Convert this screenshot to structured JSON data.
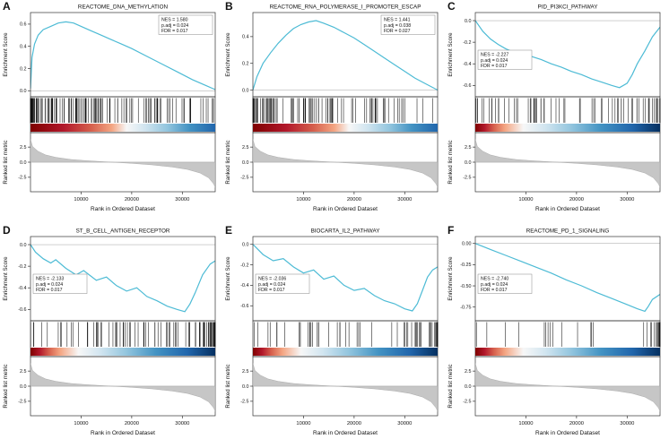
{
  "shared": {
    "xlabel": "Rank in Ordered Dataset",
    "es_ylabel": "Enrichment Score",
    "rank_ylabel": "Ranked list metric",
    "xlim": [
      0,
      36500
    ],
    "xticks": {
      "values": [
        10000,
        20000,
        30000
      ],
      "labels": [
        "10000",
        "20000",
        "30000"
      ]
    },
    "rank_yticks": {
      "values": [
        2.5,
        0,
        -2.5
      ],
      "labels": [
        "2.5",
        "0.0",
        "-2.5"
      ]
    },
    "rank_ylim": [
      -4.6,
      4.6
    ],
    "rank_metric_curve": {
      "x": [
        0,
        400,
        1500,
        3000,
        5000,
        8000,
        11000,
        14000,
        17000,
        20000,
        24000,
        28000,
        31000,
        33500,
        35200,
        36200,
        36500
      ],
      "y": [
        3.8,
        2.6,
        1.8,
        1.2,
        0.8,
        0.45,
        0.25,
        0.1,
        -0.05,
        -0.2,
        -0.45,
        -0.8,
        -1.2,
        -1.8,
        -2.6,
        -3.6,
        -4.2
      ]
    },
    "colors": {
      "es_curve": "#4dbbd5",
      "rank_fill": "#c6c6c6",
      "rank_stroke": "#a0a0a0",
      "axis": "#333333",
      "zero_line": "#b5b5b5",
      "hit": "#111111"
    }
  },
  "chart_data": [
    {
      "type": "line",
      "panel": "A",
      "title": "REACTOME_DNA_METHYLATION",
      "stats_lines": [
        "NES = 1.580",
        "p.adj = 0.024",
        "FDR = 0.017"
      ],
      "stats_pos": "top-right",
      "es_ylim": [
        -0.03,
        0.68
      ],
      "es_yticks": {
        "values": [
          0.0,
          0.2,
          0.4,
          0.6
        ],
        "labels": [
          "0.0",
          "0.2",
          "0.4",
          "0.6"
        ]
      },
      "es_curve": {
        "x": [
          0,
          300,
          800,
          1500,
          2500,
          4000,
          5500,
          7000,
          8500,
          10000,
          12000,
          14000,
          16000,
          18000,
          20000,
          23000,
          26000,
          29000,
          32000,
          34500,
          36500
        ],
        "y": [
          0.02,
          0.3,
          0.42,
          0.5,
          0.55,
          0.58,
          0.61,
          0.62,
          0.61,
          0.58,
          0.54,
          0.5,
          0.46,
          0.42,
          0.38,
          0.31,
          0.24,
          0.17,
          0.1,
          0.05,
          0.01
        ]
      },
      "hits": {
        "count": 140,
        "side": "left",
        "skew": 2.2,
        "mix": 0.75,
        "seed": 11
      },
      "heat_stops": [
        [
          0,
          "#7f0000"
        ],
        [
          0.18,
          "#b2182b"
        ],
        [
          0.33,
          "#d6604d"
        ],
        [
          0.44,
          "#f4a582"
        ],
        [
          0.52,
          "#f7f7f7"
        ],
        [
          0.62,
          "#d1e5f0"
        ],
        [
          0.74,
          "#92c5de"
        ],
        [
          0.86,
          "#4393c3"
        ],
        [
          1,
          "#2166ac"
        ]
      ]
    },
    {
      "type": "line",
      "panel": "B",
      "title": "REACTOME_RNA_POLYMERASE_I_PROMOTER_ESCAP",
      "stats_lines": [
        "NES = 1.441",
        "p.adj = 0.038",
        "FDR = 0.027"
      ],
      "stats_pos": "top-right",
      "es_ylim": [
        -0.03,
        0.56
      ],
      "es_yticks": {
        "values": [
          0.0,
          0.2,
          0.4
        ],
        "labels": [
          "0.0",
          "0.2",
          "0.4"
        ]
      },
      "es_curve": {
        "x": [
          0,
          800,
          2000,
          3500,
          5000,
          6500,
          8000,
          9500,
          11000,
          12500,
          14000,
          16000,
          18000,
          20000,
          22000,
          24000,
          26000,
          28000,
          30000,
          32000,
          34000,
          36500
        ],
        "y": [
          0.0,
          0.1,
          0.2,
          0.28,
          0.35,
          0.41,
          0.46,
          0.49,
          0.51,
          0.52,
          0.5,
          0.47,
          0.43,
          0.39,
          0.34,
          0.29,
          0.24,
          0.19,
          0.14,
          0.09,
          0.05,
          0.0
        ]
      },
      "hits": {
        "count": 100,
        "side": "left",
        "skew": 1.8,
        "mix": 0.7,
        "seed": 22
      },
      "heat_stops": [
        [
          0,
          "#7f0000"
        ],
        [
          0.18,
          "#b2182b"
        ],
        [
          0.33,
          "#d6604d"
        ],
        [
          0.44,
          "#f4a582"
        ],
        [
          0.52,
          "#f7f7f7"
        ],
        [
          0.62,
          "#d1e5f0"
        ],
        [
          0.74,
          "#92c5de"
        ],
        [
          0.86,
          "#4393c3"
        ],
        [
          1,
          "#2166ac"
        ]
      ]
    },
    {
      "type": "line",
      "panel": "C",
      "title": "PID_PI3KCI_PATHWAY",
      "stats_lines": [
        "NES = -2.227",
        "p.adj = 0.024",
        "FDR = 0.017"
      ],
      "stats_pos": "mid-left",
      "es_ylim": [
        -0.68,
        0.05
      ],
      "es_yticks": {
        "values": [
          0.0,
          -0.2,
          -0.4,
          -0.6
        ],
        "labels": [
          "0.0",
          "-0.2",
          "-0.4",
          "-0.6"
        ]
      },
      "es_curve": {
        "x": [
          0,
          1500,
          3000,
          4500,
          6000,
          8000,
          9500,
          11000,
          13000,
          15000,
          17000,
          19000,
          21000,
          23000,
          25000,
          27000,
          28500,
          30000,
          31000,
          32000,
          33500,
          35000,
          36500
        ],
        "y": [
          0,
          -0.1,
          -0.17,
          -0.22,
          -0.26,
          -0.3,
          -0.28,
          -0.33,
          -0.36,
          -0.4,
          -0.43,
          -0.47,
          -0.5,
          -0.54,
          -0.57,
          -0.6,
          -0.62,
          -0.58,
          -0.5,
          -0.4,
          -0.28,
          -0.15,
          -0.06
        ]
      },
      "hits": {
        "count": 70,
        "side": "right",
        "skew": 2.2,
        "mix": 0.7,
        "seed": 33
      },
      "heat_stops": [
        [
          0,
          "#7f0000"
        ],
        [
          0.05,
          "#b2182b"
        ],
        [
          0.1,
          "#d6604d"
        ],
        [
          0.16,
          "#f4a582"
        ],
        [
          0.26,
          "#f7f7f7"
        ],
        [
          0.38,
          "#d1e5f0"
        ],
        [
          0.52,
          "#92c5de"
        ],
        [
          0.68,
          "#4393c3"
        ],
        [
          0.85,
          "#2166ac"
        ],
        [
          1,
          "#053061"
        ]
      ]
    },
    {
      "type": "line",
      "panel": "D",
      "title": "ST_B_CELL_ANTIGEN_RECEPTOR",
      "stats_lines": [
        "NES = -2.133",
        "p.adj = 0.024",
        "FDR = 0.017"
      ],
      "stats_pos": "mid-left",
      "es_ylim": [
        -0.68,
        0.05
      ],
      "es_yticks": {
        "values": [
          0.0,
          -0.2,
          -0.4,
          -0.6
        ],
        "labels": [
          "0.0",
          "-0.2",
          "-0.4",
          "-0.6"
        ]
      },
      "es_curve": {
        "x": [
          0,
          1000,
          2500,
          4000,
          5000,
          7000,
          9000,
          10500,
          13000,
          15000,
          17000,
          19000,
          21000,
          23000,
          25000,
          27000,
          29000,
          30500,
          31500,
          32500,
          34000,
          35500,
          36500
        ],
        "y": [
          0,
          -0.07,
          -0.13,
          -0.17,
          -0.14,
          -0.22,
          -0.28,
          -0.24,
          -0.33,
          -0.3,
          -0.38,
          -0.43,
          -0.4,
          -0.48,
          -0.52,
          -0.57,
          -0.6,
          -0.62,
          -0.55,
          -0.45,
          -0.28,
          -0.18,
          -0.15
        ]
      },
      "hits": {
        "count": 85,
        "side": "right",
        "skew": 2.0,
        "mix": 0.75,
        "seed": 44
      },
      "heat_stops": [
        [
          0,
          "#7f0000"
        ],
        [
          0.05,
          "#b2182b"
        ],
        [
          0.1,
          "#d6604d"
        ],
        [
          0.16,
          "#f4a582"
        ],
        [
          0.26,
          "#f7f7f7"
        ],
        [
          0.38,
          "#d1e5f0"
        ],
        [
          0.52,
          "#92c5de"
        ],
        [
          0.68,
          "#4393c3"
        ],
        [
          0.85,
          "#2166ac"
        ],
        [
          1,
          "#053061"
        ]
      ]
    },
    {
      "type": "line",
      "panel": "E",
      "title": "BIOCARTA_IL2_PATHWAY",
      "stats_lines": [
        "NES = -2.036",
        "p.adj = 0.024",
        "FDR = 0.017"
      ],
      "stats_pos": "mid-left",
      "es_ylim": [
        -0.72,
        0.05
      ],
      "es_yticks": {
        "values": [
          0.0,
          -0.2,
          -0.4,
          -0.6
        ],
        "labels": [
          "0.0",
          "-0.2",
          "-0.4",
          "-0.6"
        ]
      },
      "es_curve": {
        "x": [
          0,
          2000,
          4000,
          6000,
          8000,
          10000,
          12000,
          14000,
          16000,
          18000,
          20000,
          22000,
          24000,
          26000,
          28000,
          30000,
          31500,
          32500,
          33500,
          34500,
          35500,
          36500
        ],
        "y": [
          0,
          -0.1,
          -0.16,
          -0.14,
          -0.22,
          -0.28,
          -0.25,
          -0.34,
          -0.31,
          -0.4,
          -0.45,
          -0.43,
          -0.5,
          -0.55,
          -0.58,
          -0.63,
          -0.65,
          -0.58,
          -0.45,
          -0.32,
          -0.25,
          -0.22
        ]
      },
      "hits": {
        "count": 60,
        "side": "right",
        "skew": 2.2,
        "mix": 0.7,
        "seed": 55
      },
      "heat_stops": [
        [
          0,
          "#7f0000"
        ],
        [
          0.05,
          "#b2182b"
        ],
        [
          0.1,
          "#d6604d"
        ],
        [
          0.16,
          "#f4a582"
        ],
        [
          0.26,
          "#f7f7f7"
        ],
        [
          0.38,
          "#d1e5f0"
        ],
        [
          0.52,
          "#92c5de"
        ],
        [
          0.68,
          "#4393c3"
        ],
        [
          0.85,
          "#2166ac"
        ],
        [
          1,
          "#053061"
        ]
      ]
    },
    {
      "type": "line",
      "panel": "F",
      "title": "REACTOME_PD_1_SIGNALING",
      "stats_lines": [
        "NES = -2.740",
        "p.adj = 0.024",
        "FDR = 0.017"
      ],
      "stats_pos": "mid-left",
      "es_ylim": [
        -0.88,
        0.05
      ],
      "es_yticks": {
        "values": [
          0.0,
          -0.25,
          -0.5,
          -0.75
        ],
        "labels": [
          "0.00",
          "-0.25",
          "-0.50",
          "-0.75"
        ]
      },
      "es_curve": {
        "x": [
          0,
          3000,
          6000,
          9000,
          12000,
          15000,
          18000,
          21000,
          24000,
          27000,
          30000,
          32000,
          33500,
          34200,
          35000,
          36500
        ],
        "y": [
          0,
          -0.07,
          -0.14,
          -0.21,
          -0.28,
          -0.35,
          -0.43,
          -0.5,
          -0.58,
          -0.65,
          -0.72,
          -0.77,
          -0.8,
          -0.74,
          -0.66,
          -0.6
        ]
      },
      "hits": {
        "count": 30,
        "side": "right",
        "skew": 3.2,
        "mix": 0.85,
        "seed": 66
      },
      "heat_stops": [
        [
          0,
          "#7f0000"
        ],
        [
          0.05,
          "#b2182b"
        ],
        [
          0.1,
          "#d6604d"
        ],
        [
          0.16,
          "#f4a582"
        ],
        [
          0.26,
          "#f7f7f7"
        ],
        [
          0.38,
          "#d1e5f0"
        ],
        [
          0.52,
          "#92c5de"
        ],
        [
          0.68,
          "#4393c3"
        ],
        [
          0.85,
          "#2166ac"
        ],
        [
          1,
          "#053061"
        ]
      ]
    }
  ]
}
